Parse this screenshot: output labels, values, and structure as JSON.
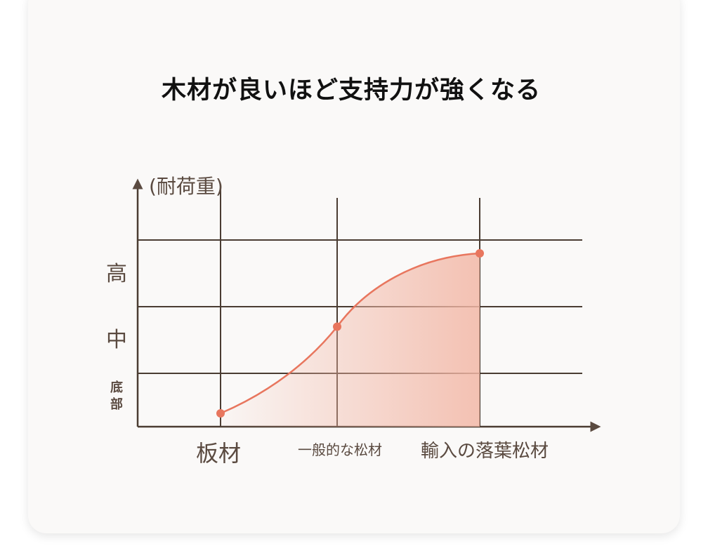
{
  "chart_data": {
    "type": "line",
    "title": "木材が良いほど支持力が強くなる",
    "ylabel": "(耐荷重)",
    "xlabel": "",
    "categories": [
      "板材",
      "一般的な松材",
      "輸入の落葉松材"
    ],
    "y_tick_labels": [
      {
        "label": "底部",
        "value": 0.6
      },
      {
        "label": "中",
        "value": 1.5
      },
      {
        "label": "高",
        "value": 2.5
      }
    ],
    "y_gridlines": [
      1,
      2,
      3
    ],
    "ylim": [
      0.2,
      3.8
    ],
    "values": [
      0.4,
      1.7,
      2.8
    ],
    "grid": true,
    "area_fill": true,
    "colors": {
      "line": "#e8765e",
      "fill": "#f2b7a6",
      "axis": "#4a3c32",
      "label": "#5a4a40"
    }
  }
}
